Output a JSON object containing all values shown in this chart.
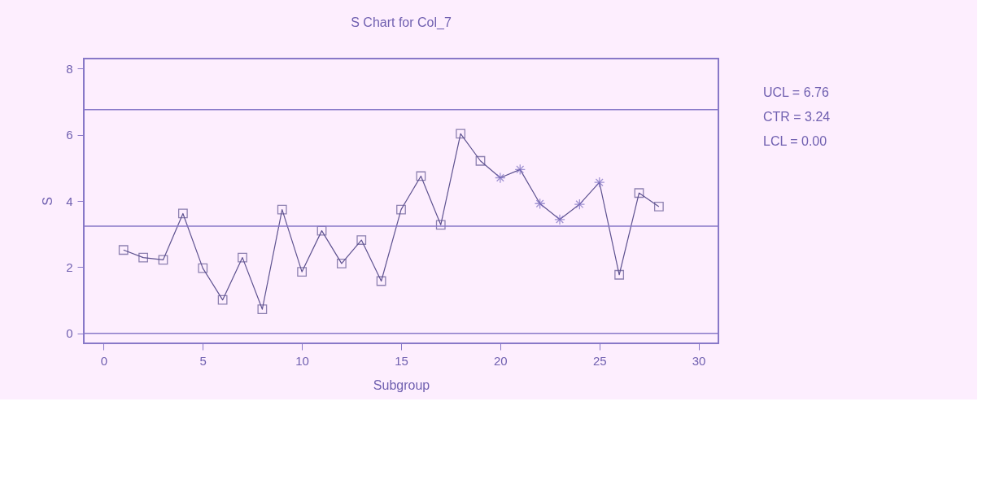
{
  "chart_data": {
    "type": "line",
    "title": "S Chart for Col_7",
    "xlabel": "Subgroup",
    "ylabel": "S",
    "x": [
      1,
      2,
      3,
      4,
      5,
      6,
      7,
      8,
      9,
      10,
      11,
      12,
      13,
      14,
      15,
      16,
      17,
      18,
      19,
      20,
      21,
      22,
      23,
      24,
      25,
      26,
      27,
      28
    ],
    "series": [
      {
        "type": "line",
        "color": "#5e5290",
        "marker": "none",
        "values": [
          2.52,
          2.29,
          2.22,
          3.62,
          1.97,
          1.01,
          2.29,
          0.73,
          3.74,
          1.86,
          3.1,
          2.11,
          2.82,
          1.58,
          3.74,
          4.75,
          3.28,
          6.03,
          5.21,
          4.7,
          4.95,
          3.92,
          3.44,
          3.9,
          4.56,
          1.77,
          4.24,
          3.83
        ]
      },
      {
        "type": "scatter",
        "color": "#5e5290",
        "marker": "square",
        "values": [
          2.52,
          2.29,
          2.22,
          3.62,
          1.97,
          1.01,
          2.29,
          0.73,
          3.74,
          1.86,
          3.1,
          2.11,
          2.82,
          1.58,
          3.74,
          4.75,
          3.28,
          6.03,
          5.21,
          null,
          null,
          null,
          null,
          null,
          null,
          1.77,
          4.24,
          3.83
        ]
      },
      {
        "type": "scatter",
        "color": "#7a6cc0",
        "marker": "cross",
        "values": [
          null,
          null,
          null,
          null,
          null,
          null,
          null,
          null,
          null,
          null,
          null,
          null,
          null,
          null,
          null,
          null,
          null,
          null,
          null,
          4.7,
          4.95,
          3.92,
          3.44,
          3.9,
          4.56,
          null,
          null,
          null
        ]
      }
    ],
    "ref_lines": [
      {
        "axis": "y",
        "value": 6.76,
        "label": "UCL = 6.76",
        "color": "#8878c8"
      },
      {
        "axis": "y",
        "value": 3.24,
        "label": "CTR = 3.24",
        "color": "#8878c8"
      },
      {
        "axis": "y",
        "value": 0.0,
        "label": "LCL = 0.00",
        "color": "#8878c8"
      }
    ],
    "xlim": [
      -1,
      31
    ],
    "xticks": [
      0,
      5,
      10,
      15,
      20,
      25,
      30
    ],
    "ylim": [
      -0.3,
      8.3
    ],
    "yticks": [
      0,
      2,
      4,
      6,
      8
    ],
    "grid": false
  }
}
